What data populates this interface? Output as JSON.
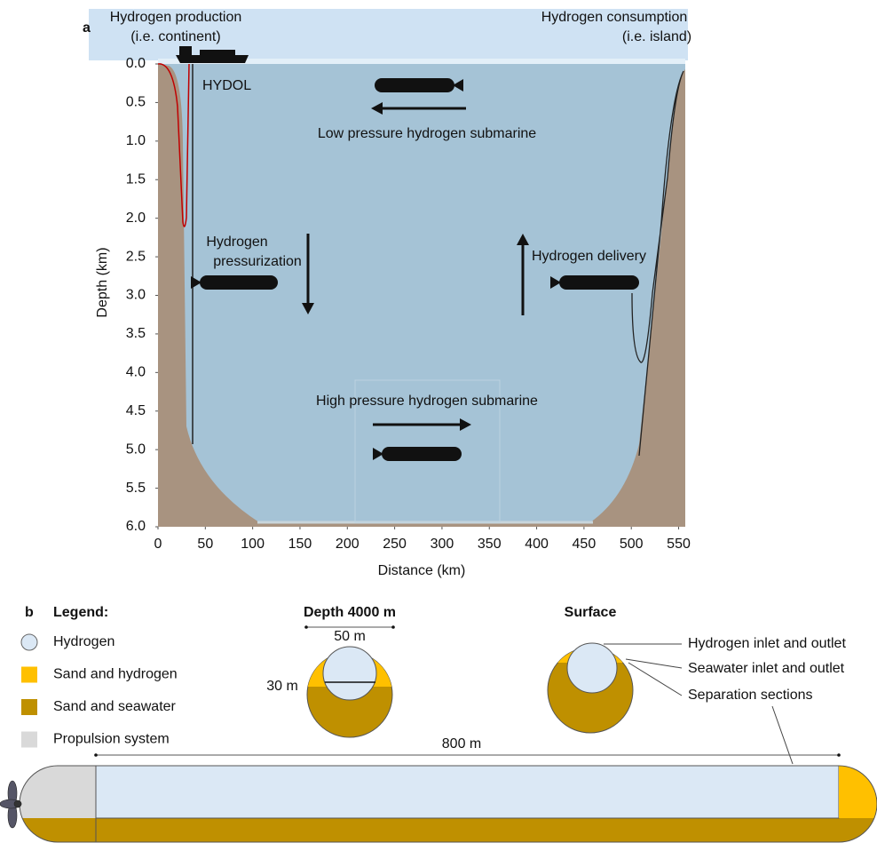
{
  "panel_a": {
    "label": "a",
    "left_title": [
      "Hydrogen production",
      "(i.e. continent)"
    ],
    "right_title": [
      "Hydrogen consumption",
      "(i.e. island)"
    ],
    "hydol": "HYDOL",
    "low_pressure": "Low pressure hydrogen submarine",
    "pressurization": [
      "Hydrogen",
      "pressurization"
    ],
    "delivery": "Hydrogen delivery",
    "high_pressure": "High pressure hydrogen submarine",
    "x_label": "Distance (km)",
    "y_label": "Depth (km)",
    "xlim": [
      0,
      557
    ],
    "ylim": [
      0,
      6
    ],
    "xticks": [
      0,
      50,
      100,
      150,
      200,
      250,
      300,
      350,
      400,
      450,
      500,
      550
    ],
    "yticks": [
      {
        "value": 0,
        "label": "0.0"
      },
      {
        "value": 0.5,
        "label": "0.5"
      },
      {
        "value": 1,
        "label": "1.0"
      },
      {
        "value": 1.5,
        "label": "1.5"
      },
      {
        "value": 2,
        "label": "2.0"
      },
      {
        "value": 2.5,
        "label": "2.5"
      },
      {
        "value": 3,
        "label": "3.0"
      },
      {
        "value": 3.5,
        "label": "3.5"
      },
      {
        "value": 4,
        "label": "4.0"
      },
      {
        "value": 4.5,
        "label": "4.5"
      },
      {
        "value": 5,
        "label": "5.0"
      },
      {
        "value": 5.5,
        "label": "5.5"
      },
      {
        "value": 6,
        "label": "6.0"
      }
    ]
  },
  "panel_b": {
    "label": "b",
    "legend_title": "Legend:",
    "legend": [
      {
        "label": "Hydrogen",
        "color": "#dbe8f5"
      },
      {
        "label": "Sand and hydrogen",
        "color": "#ffc000"
      },
      {
        "label": "Sand and seawater",
        "color": "#bf9000"
      },
      {
        "label": "Propulsion system",
        "color": "#d9d9d9"
      }
    ],
    "depth_title": "Depth 4000 m",
    "surface_title": "Surface",
    "width_label": "50 m",
    "height_label": "30 m",
    "length_label": "800 m",
    "annotations": [
      "Hydrogen inlet and outlet",
      "Seawater inlet and outlet",
      "Separation sections"
    ]
  }
}
